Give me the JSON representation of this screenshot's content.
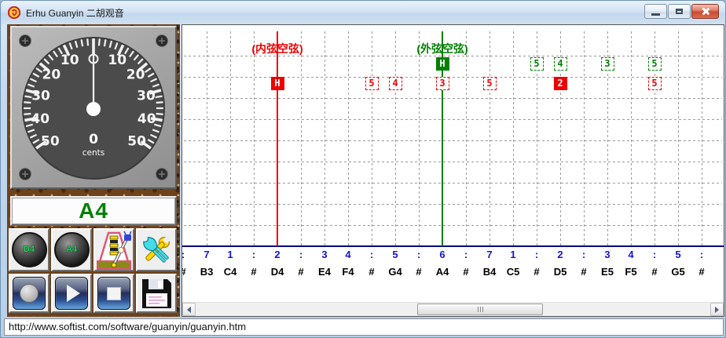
{
  "window": {
    "title": "Erhu Guanyin 二胡观音"
  },
  "status_bar": {
    "url": "http://www.softist.com/software/guanyin/guanyin.htm"
  },
  "tuner": {
    "current_note": "A4",
    "cents_value": "0",
    "cents_unit": "cents",
    "dial_numbers": [
      "10",
      "20",
      "30",
      "40",
      "50"
    ]
  },
  "controls": {
    "speaker_inner_label": "D4",
    "speaker_outer_label": "A4"
  },
  "chart": {
    "inner_string_label": "(内弦空弦)",
    "outer_string_label": "(外弦空弦)",
    "inner_line_col": 4,
    "outer_line_col": 11,
    "colors": {
      "inner": "#ee0000",
      "outer": "#008000",
      "solfege": "#1414d8",
      "note": "#000000",
      "grid": "#9a9a9a",
      "baseline": "#000080"
    },
    "columns": [
      {
        "solfege": ":",
        "note": "#"
      },
      {
        "solfege": "7",
        "note": "B3"
      },
      {
        "solfege": "1",
        "note": "C4"
      },
      {
        "solfege": ":",
        "note": "#"
      },
      {
        "solfege": "2",
        "note": "D4"
      },
      {
        "solfege": ":",
        "note": "#"
      },
      {
        "solfege": "3",
        "note": "E4"
      },
      {
        "solfege": "4",
        "note": "F4"
      },
      {
        "solfege": ":",
        "note": "#"
      },
      {
        "solfege": "5",
        "note": "G4"
      },
      {
        "solfege": ":",
        "note": "#"
      },
      {
        "solfege": "6",
        "note": "A4"
      },
      {
        "solfege": ":",
        "note": "#"
      },
      {
        "solfege": "7",
        "note": "B4"
      },
      {
        "solfege": "1",
        "note": "C5"
      },
      {
        "solfege": ":",
        "note": "#"
      },
      {
        "solfege": "2",
        "note": "D5"
      },
      {
        "solfege": ":",
        "note": "#"
      },
      {
        "solfege": "3",
        "note": "E5"
      },
      {
        "solfege": "4",
        "note": "F5"
      },
      {
        "solfege": ":",
        "note": "#"
      },
      {
        "solfege": "5",
        "note": "G5"
      },
      {
        "solfege": ":",
        "note": "#"
      }
    ],
    "markers": [
      {
        "row": "outer",
        "col": 11,
        "glyph": "H",
        "style": "solid"
      },
      {
        "row": "outer",
        "col": 15,
        "glyph": "5",
        "style": "dashed"
      },
      {
        "row": "outer",
        "col": 16,
        "glyph": "4",
        "style": "dashed"
      },
      {
        "row": "outer",
        "col": 18,
        "glyph": "3",
        "style": "dashed"
      },
      {
        "row": "outer",
        "col": 20,
        "glyph": "5",
        "style": "dashed"
      },
      {
        "row": "inner",
        "col": 4,
        "glyph": "H",
        "style": "solid"
      },
      {
        "row": "inner",
        "col": 8,
        "glyph": "5",
        "style": "dashed"
      },
      {
        "row": "inner",
        "col": 9,
        "glyph": "4",
        "style": "dashed"
      },
      {
        "row": "inner",
        "col": 11,
        "glyph": "3",
        "style": "dashed"
      },
      {
        "row": "inner",
        "col": 13,
        "glyph": "5",
        "style": "dashed"
      },
      {
        "row": "inner",
        "col": 16,
        "glyph": "2",
        "style": "solid"
      },
      {
        "row": "inner",
        "col": 20,
        "glyph": "5",
        "style": "dashed"
      }
    ]
  }
}
